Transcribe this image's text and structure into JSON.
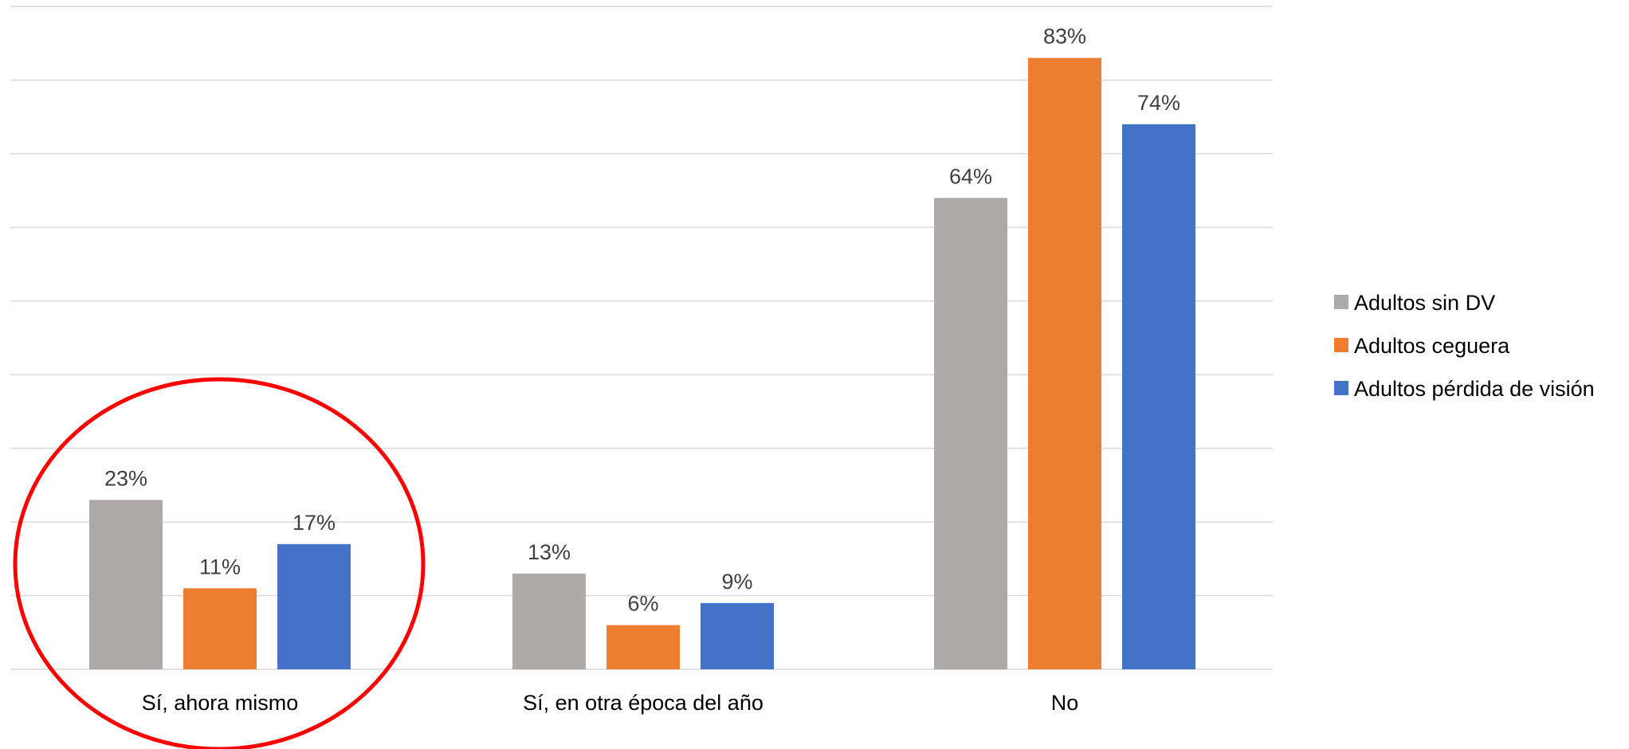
{
  "chart_data": {
    "type": "bar",
    "categories": [
      "Sí, ahora mismo",
      "Sí, en otra época del año",
      "No"
    ],
    "series": [
      {
        "name": "Adultos sin DV",
        "values": [
          23,
          13,
          64
        ],
        "color": "#ADAAA9"
      },
      {
        "name": "Adultos ceguera",
        "values": [
          11,
          6,
          83
        ],
        "color": "#ED7D31"
      },
      {
        "name": "Adultos pérdida de visión",
        "values": [
          17,
          9,
          74
        ],
        "color": "#4472C4"
      }
    ],
    "data_labels": [
      [
        "23%",
        "13%",
        "64%"
      ],
      [
        "11%",
        "6%",
        "83%"
      ],
      [
        "17%",
        "9%",
        "74%"
      ]
    ],
    "ylim": [
      0,
      90
    ],
    "value_axis_labels": "hidden",
    "grid": true,
    "grid_color": "#D9D9D9",
    "legend_position": "right",
    "annotation": {
      "shape": "ellipse",
      "color": "#FF0000",
      "highlights": "Sí, ahora mismo"
    }
  }
}
